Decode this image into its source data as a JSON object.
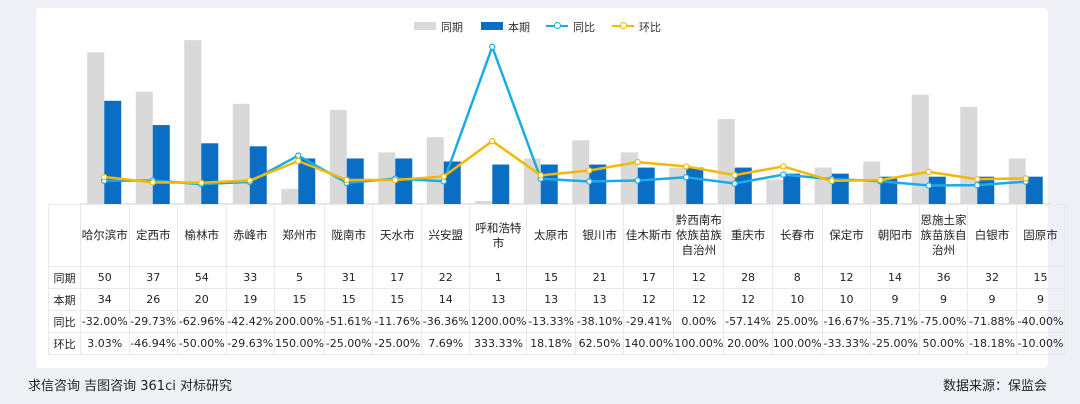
{
  "chart_data": {
    "type": "bar+line",
    "categories": [
      "哈尔滨市",
      "定西市",
      "榆林市",
      "赤峰市",
      "郑州市",
      "陇南市",
      "天水市",
      "兴安盟",
      "呼和浩特市",
      "太原市",
      "银川市",
      "佳木斯市",
      "黔西南布依族苗族自治州",
      "重庆市",
      "长春市",
      "保定市",
      "朝阳市",
      "恩施土家族苗族自治州",
      "白银市",
      "固原市"
    ],
    "series": [
      {
        "name": "同期",
        "type": "bar",
        "color": "#d9d9d9",
        "values": [
          50,
          37,
          54,
          33,
          5,
          31,
          17,
          22,
          1,
          15,
          21,
          17,
          12,
          28,
          8,
          12,
          14,
          36,
          32,
          15
        ]
      },
      {
        "name": "本期",
        "type": "bar",
        "color": "#0a6fc4",
        "values": [
          34,
          26,
          20,
          19,
          15,
          15,
          15,
          14,
          13,
          13,
          13,
          12,
          12,
          12,
          10,
          10,
          9,
          9,
          9,
          9
        ]
      },
      {
        "name": "同比",
        "type": "line",
        "color": "#1aabeb",
        "values": [
          -32.0,
          -29.73,
          -62.96,
          -42.42,
          200.0,
          -51.61,
          -11.76,
          -36.36,
          1200.0,
          -13.33,
          -38.1,
          -29.41,
          0.0,
          -57.14,
          25.0,
          -16.67,
          -35.71,
          -75.0,
          -71.88,
          -40.0
        ]
      },
      {
        "name": "环比",
        "type": "line",
        "color": "#f5b800",
        "values": [
          3.03,
          -46.94,
          -50.0,
          -29.63,
          150.0,
          -25.0,
          -25.0,
          7.69,
          333.33,
          18.18,
          62.5,
          140.0,
          100.0,
          20.0,
          100.0,
          -33.33,
          -25.0,
          50.0,
          -18.18,
          -10.0
        ]
      }
    ],
    "table": {
      "row_labels": [
        "同期",
        "本期",
        "同比",
        "环比"
      ],
      "rows": [
        [
          "50",
          "37",
          "54",
          "33",
          "5",
          "31",
          "17",
          "22",
          "1",
          "15",
          "21",
          "17",
          "12",
          "28",
          "8",
          "12",
          "14",
          "36",
          "32",
          "15"
        ],
        [
          "34",
          "26",
          "20",
          "19",
          "15",
          "15",
          "15",
          "14",
          "13",
          "13",
          "13",
          "12",
          "12",
          "12",
          "10",
          "10",
          "9",
          "9",
          "9",
          "9"
        ],
        [
          "-32.00%",
          "-29.73%",
          "-62.96%",
          "-42.42%",
          "200.00%",
          "-51.61%",
          "-11.76%",
          "-36.36%",
          "1200.00%",
          "-13.33%",
          "-38.10%",
          "-29.41%",
          "0.00%",
          "-57.14%",
          "25.00%",
          "-16.67%",
          "-35.71%",
          "-75.00%",
          "-71.88%",
          "-40.00%"
        ],
        [
          "3.03%",
          "-46.94%",
          "-50.00%",
          "-29.63%",
          "150.00%",
          "-25.00%",
          "-25.00%",
          "7.69%",
          "333.33%",
          "18.18%",
          "62.50%",
          "140.00%",
          "100.00%",
          "20.00%",
          "100.00%",
          "-33.33%",
          "-25.00%",
          "50.00%",
          "-18.18%",
          "-10.00%"
        ]
      ]
    },
    "bar_ylim": [
      0,
      56
    ],
    "line_ylim": [
      -80,
      1300
    ],
    "legend_position": "top-center"
  },
  "footer": {
    "left": "求信咨询 吉图咨询 361ci 对标研究",
    "right": "数据来源：保监会"
  }
}
